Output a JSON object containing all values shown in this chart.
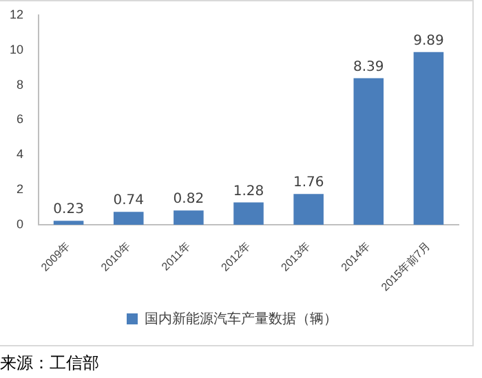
{
  "chart_data": {
    "type": "bar",
    "categories": [
      "2009年",
      "2010年",
      "2011年",
      "2012年",
      "2013年",
      "2014年",
      "2015年前7月"
    ],
    "series": [
      {
        "name": "国内新能源汽车产量数据（辆）",
        "color": "#4a7ebb",
        "values": [
          0.23,
          0.74,
          0.82,
          1.28,
          1.76,
          8.39,
          9.89
        ]
      }
    ],
    "ylim": [
      0,
      12
    ],
    "yticks": [
      0,
      2,
      4,
      6,
      8,
      10,
      12
    ],
    "grid": false,
    "legend": "bottom",
    "data_labels": true,
    "annotations": [
      "来源：工信部"
    ]
  }
}
